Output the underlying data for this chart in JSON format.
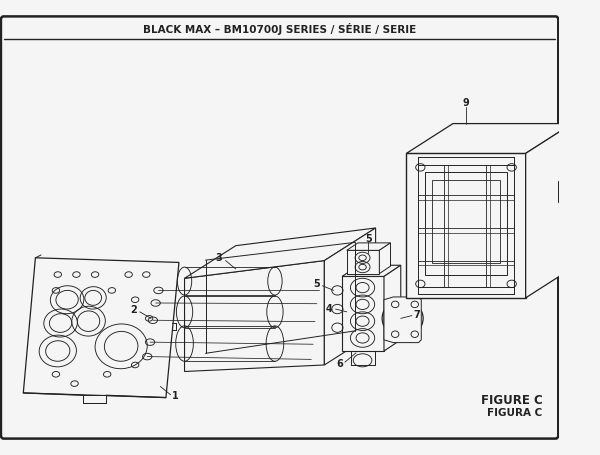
{
  "title": "BLACK MAX – BM10700J SERIES / SÉRIE / SERIE",
  "figure_label": "FIGURE C",
  "figura_label": "FIGURA C",
  "bg_color": "#f5f5f5",
  "border_color": "#222222",
  "line_color": "#222222",
  "title_fontsize": 7.5,
  "label_fontsize": 7.0,
  "figure_label_fontsize": 8.5
}
